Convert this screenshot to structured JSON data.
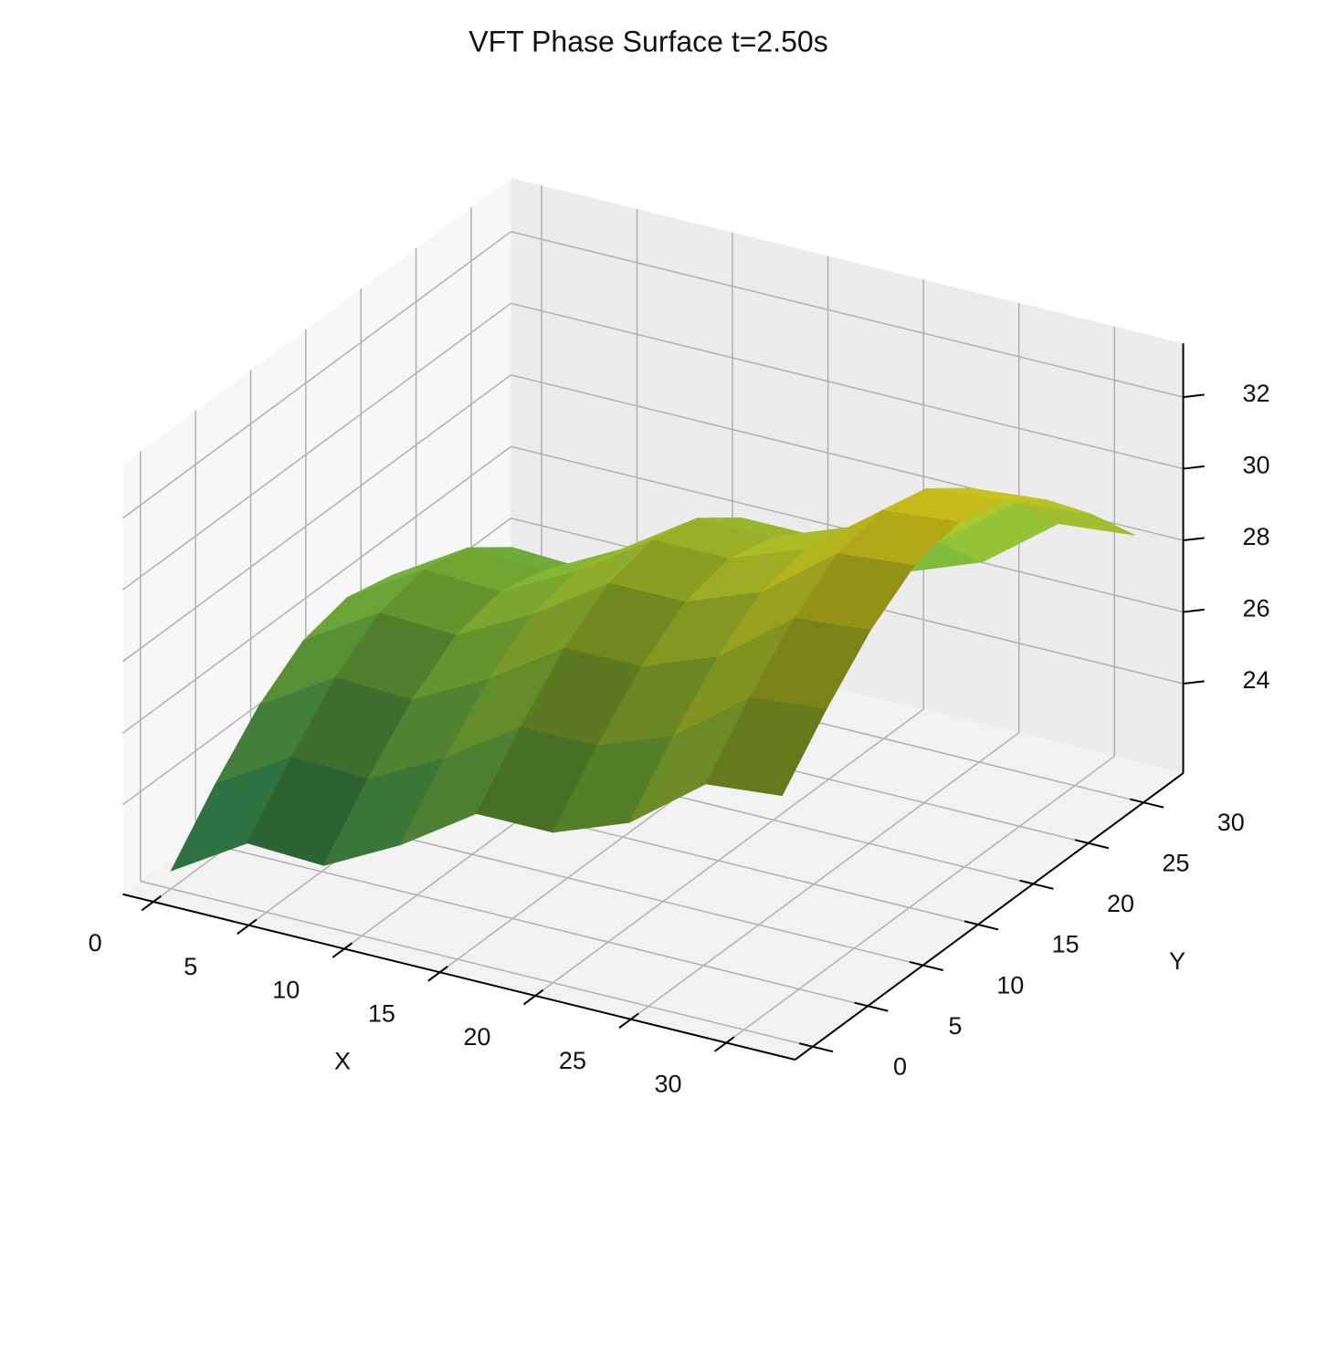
{
  "chart_data": {
    "type": "surface",
    "title": "VFT Phase Surface t=2.50s",
    "xlabel": "X",
    "ylabel": "Y",
    "x": [
      0,
      4,
      8,
      12,
      16,
      20,
      24,
      28,
      32
    ],
    "y": [
      0,
      4,
      8,
      12,
      16,
      20,
      24,
      28,
      32
    ],
    "z": [
      [
        22.0,
        23.5,
        24.8,
        25.7,
        26.0,
        25.7,
        24.8,
        23.5,
        22.0
      ],
      [
        23.3,
        24.8,
        26.1,
        27.0,
        27.3,
        27.0,
        26.1,
        24.8,
        23.3
      ],
      [
        23.2,
        24.7,
        26.0,
        26.9,
        27.2,
        26.9,
        26.0,
        24.7,
        23.2
      ],
      [
        24.3,
        25.8,
        27.1,
        28.0,
        28.3,
        28.0,
        27.1,
        25.8,
        24.3
      ],
      [
        25.7,
        27.2,
        28.5,
        29.4,
        29.7,
        29.4,
        28.5,
        27.2,
        25.7
      ],
      [
        25.7,
        27.2,
        28.5,
        29.4,
        29.7,
        29.4,
        28.5,
        27.2,
        25.7
      ],
      [
        26.5,
        28.0,
        29.3,
        30.2,
        30.5,
        30.2,
        29.3,
        28.0,
        26.5
      ],
      [
        28.1,
        29.6,
        30.9,
        31.8,
        32.1,
        31.8,
        30.9,
        29.6,
        28.1
      ],
      [
        28.3,
        29.8,
        31.1,
        32.0,
        32.3,
        32.0,
        31.1,
        29.8,
        28.3
      ]
    ],
    "xlim": [
      -1.6,
      33.6
    ],
    "ylim": [
      -1.6,
      33.6
    ],
    "zlim": [
      21.5,
      33.5
    ],
    "xticks": [
      0,
      5,
      10,
      15,
      20,
      25,
      30
    ],
    "yticks": [
      0,
      5,
      10,
      15,
      20,
      25,
      30
    ],
    "zticks": [
      24,
      26,
      28,
      30,
      32
    ],
    "colormap": [
      "#2a9a6c",
      "#86c03a",
      "#e2d21c"
    ],
    "grid": true
  }
}
